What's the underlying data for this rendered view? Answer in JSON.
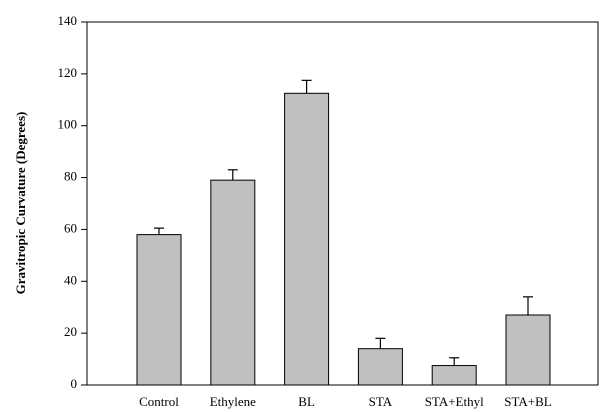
{
  "chart_data": {
    "type": "bar",
    "y_label": "Gravitropic Curvature (Degrees)",
    "categories": [
      "Control",
      "Ethylene",
      "BL",
      "STA",
      "STA+Ethyl",
      "STA+BL"
    ],
    "values": [
      58,
      79,
      112.5,
      14,
      7.5,
      27
    ],
    "errors": [
      2.5,
      4,
      5,
      4,
      3,
      7
    ],
    "color": "#c0c0c0",
    "ylim": [
      0,
      140
    ],
    "yticks": [
      0,
      20,
      40,
      60,
      80,
      100,
      120,
      140
    ]
  }
}
